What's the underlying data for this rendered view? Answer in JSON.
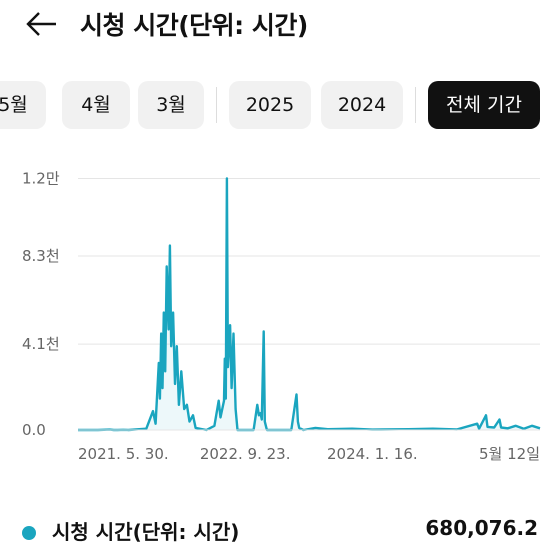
{
  "header": {
    "title": "시청 시간(단위: 시간)",
    "back_icon": "arrow-left-icon"
  },
  "filters": {
    "chips": [
      {
        "label": "5월",
        "selected": false
      },
      {
        "label": "4월",
        "selected": false
      },
      {
        "label": "3월",
        "selected": false
      },
      {
        "label": "2025",
        "selected": false
      },
      {
        "label": "2024",
        "selected": false
      },
      {
        "label": "전체 기간",
        "selected": true
      }
    ]
  },
  "colors": {
    "series": "#1aa5bf",
    "gridline": "#e5e5e5",
    "axis_text": "#666666",
    "selected_chip": "#111111",
    "chip": "#f1f1f1"
  },
  "chart_data": {
    "type": "area",
    "title": "",
    "xlabel": "",
    "ylabel": "",
    "y_ticks": [
      {
        "value": 0,
        "label": "0.0"
      },
      {
        "value": 4100,
        "label": "4.1천"
      },
      {
        "value": 8300,
        "label": "8.3천"
      },
      {
        "value": 12000,
        "label": "1.2만"
      }
    ],
    "x_ticks": [
      "2021. 5. 30.",
      "2022. 9. 23.",
      "2024. 1. 16.",
      "5월 12일"
    ],
    "ylim": [
      0,
      12500
    ],
    "grid": "horizontal",
    "series": [
      {
        "name": "시청 시간(단위: 시간)",
        "points": [
          [
            "2020-12-31",
            0
          ],
          [
            "2021-03-16",
            0
          ],
          [
            "2021-04-30",
            20
          ],
          [
            "2021-05-15",
            0
          ],
          [
            "2021-05-30",
            0
          ],
          [
            "2021-06-20",
            10
          ],
          [
            "2021-07-10",
            0
          ],
          [
            "2021-09-15",
            60
          ],
          [
            "2021-10-10",
            900
          ],
          [
            "2021-10-20",
            300
          ],
          [
            "2021-11-01",
            3200
          ],
          [
            "2021-11-05",
            1500
          ],
          [
            "2021-11-10",
            4600
          ],
          [
            "2021-11-15",
            2000
          ],
          [
            "2021-11-20",
            5600
          ],
          [
            "2021-11-25",
            2800
          ],
          [
            "2021-12-01",
            7800
          ],
          [
            "2021-12-08",
            4800
          ],
          [
            "2021-12-13",
            8800
          ],
          [
            "2021-12-18",
            4000
          ],
          [
            "2021-12-25",
            5600
          ],
          [
            "2022-01-01",
            2200
          ],
          [
            "2022-01-08",
            4000
          ],
          [
            "2022-01-16",
            1200
          ],
          [
            "2022-01-25",
            2800
          ],
          [
            "2022-02-05",
            1000
          ],
          [
            "2022-02-15",
            1200
          ],
          [
            "2022-02-25",
            400
          ],
          [
            "2022-03-10",
            700
          ],
          [
            "2022-03-20",
            100
          ],
          [
            "2022-04-30",
            0
          ],
          [
            "2022-05-30",
            200
          ],
          [
            "2022-06-15",
            1400
          ],
          [
            "2022-06-22",
            600
          ],
          [
            "2022-07-05",
            1400
          ],
          [
            "2022-07-08",
            3400
          ],
          [
            "2022-07-12",
            1500
          ],
          [
            "2022-07-16",
            12000
          ],
          [
            "2022-07-20",
            3000
          ],
          [
            "2022-07-28",
            5000
          ],
          [
            "2022-08-03",
            2000
          ],
          [
            "2022-08-10",
            4600
          ],
          [
            "2022-08-18",
            1000
          ],
          [
            "2022-08-25",
            0
          ],
          [
            "2022-10-25",
            0
          ],
          [
            "2022-11-08",
            1200
          ],
          [
            "2022-11-14",
            700
          ],
          [
            "2022-11-20",
            800
          ],
          [
            "2022-11-25",
            500
          ],
          [
            "2022-12-02",
            4700
          ],
          [
            "2022-12-06",
            400
          ],
          [
            "2022-12-14",
            0
          ],
          [
            "2023-03-16",
            0
          ],
          [
            "2023-04-05",
            1700
          ],
          [
            "2023-04-10",
            400
          ],
          [
            "2023-04-15",
            100
          ],
          [
            "2023-05-01",
            0
          ],
          [
            "2023-06-15",
            100
          ],
          [
            "2023-08-01",
            40
          ],
          [
            "2023-11-01",
            60
          ],
          [
            "2024-01-16",
            20
          ],
          [
            "2024-06-01",
            40
          ],
          [
            "2024-09-01",
            60
          ],
          [
            "2024-12-01",
            30
          ],
          [
            "2025-02-15",
            300
          ],
          [
            "2025-02-22",
            60
          ],
          [
            "2025-03-20",
            700
          ],
          [
            "2025-03-26",
            150
          ],
          [
            "2025-04-20",
            120
          ],
          [
            "2025-05-10",
            500
          ],
          [
            "2025-05-16",
            120
          ],
          [
            "2025-06-10",
            80
          ],
          [
            "2025-07-10",
            200
          ],
          [
            "2025-08-10",
            60
          ],
          [
            "2025-09-10",
            200
          ],
          [
            "2025-10-10",
            80
          ]
        ]
      }
    ],
    "x_tick_positions": [
      "2021-05-30",
      "2022-09-23",
      "2024-01-16",
      "2025-05-12"
    ]
  },
  "legend": {
    "label": "시청 시간(단위: 시간)",
    "total": "680,076.2"
  }
}
